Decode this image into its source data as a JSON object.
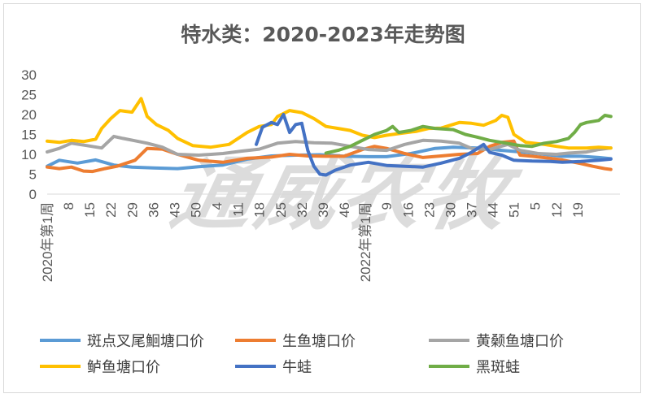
{
  "watermark": "通威农牧",
  "chart_data": {
    "type": "line",
    "title": "特水类：2020-2023年走势图",
    "ylim": [
      0,
      30
    ],
    "yticks": [
      0,
      5,
      10,
      15,
      20,
      25,
      30
    ],
    "x_tick_labels": [
      "2020年第1周",
      "8",
      "15",
      "22",
      "29",
      "36",
      "43",
      "50",
      "4",
      "11",
      "18",
      "25",
      "32",
      "39",
      "46",
      "2022年第1周",
      "9",
      "16",
      "23",
      "30",
      "37",
      "44",
      "51",
      "5",
      "12",
      "19"
    ],
    "grid": false,
    "legend_position": "bottom",
    "series": [
      {
        "name": "斑点叉尾鮰塘口价",
        "color": "#5b9bd5",
        "points": [
          [
            0,
            7
          ],
          [
            4,
            8.5
          ],
          [
            10,
            7.8
          ],
          [
            16,
            8.6
          ],
          [
            22,
            7.3
          ],
          [
            28,
            6.8
          ],
          [
            35,
            6.6
          ],
          [
            43,
            6.4
          ],
          [
            50,
            6.9
          ],
          [
            58,
            7.3
          ],
          [
            66,
            8.8
          ],
          [
            74,
            9.6
          ],
          [
            82,
            9.8
          ],
          [
            90,
            9.9
          ],
          [
            98,
            9.5
          ],
          [
            106,
            9.4
          ],
          [
            112,
            9.4
          ],
          [
            120,
            10.2
          ],
          [
            128,
            11.5
          ],
          [
            134,
            11.8
          ],
          [
            142,
            11.6
          ],
          [
            150,
            11
          ],
          [
            158,
            10.5
          ],
          [
            164,
            10
          ],
          [
            170,
            9.5
          ],
          [
            176,
            9.5
          ],
          [
            182,
            9.2
          ],
          [
            186,
            8.9
          ]
        ]
      },
      {
        "name": "生鱼塘口价",
        "color": "#ed7d31",
        "points": [
          [
            0,
            6.8
          ],
          [
            4,
            6.4
          ],
          [
            8,
            6.8
          ],
          [
            12,
            5.8
          ],
          [
            15,
            5.7
          ],
          [
            19,
            6.4
          ],
          [
            23,
            7
          ],
          [
            29,
            8.5
          ],
          [
            33,
            11.5
          ],
          [
            38,
            11.3
          ],
          [
            43,
            10
          ],
          [
            50,
            8.5
          ],
          [
            58,
            8
          ],
          [
            66,
            9
          ],
          [
            74,
            9.3
          ],
          [
            80,
            10
          ],
          [
            86,
            9.6
          ],
          [
            92,
            9.5
          ],
          [
            98,
            9.5
          ],
          [
            104,
            11.2
          ],
          [
            108,
            12
          ],
          [
            112,
            11.5
          ],
          [
            118,
            10.2
          ],
          [
            124,
            9.2
          ],
          [
            130,
            9.6
          ],
          [
            136,
            10
          ],
          [
            142,
            10.2
          ],
          [
            146,
            12
          ],
          [
            150,
            13
          ],
          [
            154,
            13.3
          ],
          [
            156,
            9.8
          ],
          [
            160,
            9.5
          ],
          [
            166,
            9
          ],
          [
            170,
            8.6
          ],
          [
            176,
            7.7
          ],
          [
            180,
            7
          ],
          [
            184,
            6.4
          ],
          [
            186,
            6.2
          ]
        ]
      },
      {
        "name": "黄颡鱼塘口价",
        "color": "#a5a5a5",
        "points": [
          [
            0,
            10.6
          ],
          [
            4,
            11.5
          ],
          [
            8,
            12.8
          ],
          [
            13,
            12.2
          ],
          [
            18,
            11.6
          ],
          [
            22,
            14.5
          ],
          [
            25,
            14
          ],
          [
            29,
            13.4
          ],
          [
            33,
            12.8
          ],
          [
            38,
            11.8
          ],
          [
            43,
            10
          ],
          [
            50,
            9.8
          ],
          [
            58,
            10.2
          ],
          [
            64,
            10.8
          ],
          [
            70,
            11.3
          ],
          [
            76,
            12.8
          ],
          [
            82,
            13.2
          ],
          [
            88,
            12.9
          ],
          [
            94,
            12.8
          ],
          [
            100,
            12
          ],
          [
            106,
            11.2
          ],
          [
            112,
            11
          ],
          [
            118,
            12.5
          ],
          [
            124,
            13.5
          ],
          [
            130,
            13.3
          ],
          [
            136,
            12.8
          ],
          [
            140,
            11.5
          ],
          [
            146,
            11.2
          ],
          [
            152,
            12.5
          ],
          [
            156,
            11
          ],
          [
            162,
            10.2
          ],
          [
            168,
            10
          ],
          [
            172,
            10.3
          ],
          [
            178,
            10.6
          ],
          [
            182,
            11.2
          ],
          [
            186,
            11.6
          ]
        ]
      },
      {
        "name": "鲈鱼塘口价",
        "color": "#ffc000",
        "points": [
          [
            0,
            13.3
          ],
          [
            4,
            13
          ],
          [
            8,
            13.5
          ],
          [
            12,
            13.2
          ],
          [
            16,
            13.8
          ],
          [
            18,
            16.5
          ],
          [
            21,
            19
          ],
          [
            24,
            21
          ],
          [
            28,
            20.6
          ],
          [
            31,
            24
          ],
          [
            33,
            19.5
          ],
          [
            36,
            17.5
          ],
          [
            40,
            16
          ],
          [
            43,
            14
          ],
          [
            48,
            12.2
          ],
          [
            54,
            11.8
          ],
          [
            60,
            12.5
          ],
          [
            66,
            15.5
          ],
          [
            70,
            17
          ],
          [
            74,
            17.5
          ],
          [
            76,
            19.5
          ],
          [
            80,
            21
          ],
          [
            84,
            20.5
          ],
          [
            88,
            19
          ],
          [
            92,
            17
          ],
          [
            96,
            16.5
          ],
          [
            100,
            16
          ],
          [
            104,
            14.8
          ],
          [
            108,
            14.2
          ],
          [
            112,
            14.8
          ],
          [
            116,
            15.2
          ],
          [
            122,
            15.8
          ],
          [
            126,
            16.5
          ],
          [
            130,
            16.6
          ],
          [
            136,
            18
          ],
          [
            140,
            17.8
          ],
          [
            144,
            17.3
          ],
          [
            148,
            18.5
          ],
          [
            150,
            19.8
          ],
          [
            152,
            19.3
          ],
          [
            154,
            15
          ],
          [
            158,
            13
          ],
          [
            164,
            12.5
          ],
          [
            168,
            12
          ],
          [
            172,
            11.6
          ],
          [
            178,
            11.6
          ],
          [
            182,
            11.8
          ],
          [
            186,
            11.6
          ]
        ]
      },
      {
        "name": "牛蛙",
        "color": "#4472c4",
        "points": [
          [
            69,
            12.5
          ],
          [
            71,
            16.8
          ],
          [
            74,
            18
          ],
          [
            76,
            17.5
          ],
          [
            78,
            20
          ],
          [
            80,
            15.5
          ],
          [
            82,
            17.5
          ],
          [
            84,
            17.8
          ],
          [
            86,
            11
          ],
          [
            88,
            7
          ],
          [
            90,
            5
          ],
          [
            92,
            4.8
          ],
          [
            95,
            6
          ],
          [
            100,
            7.3
          ],
          [
            106,
            8
          ],
          [
            112,
            7.2
          ],
          [
            118,
            7
          ],
          [
            124,
            6.8
          ],
          [
            130,
            7.8
          ],
          [
            136,
            9
          ],
          [
            140,
            10.5
          ],
          [
            144,
            12.5
          ],
          [
            146,
            10.5
          ],
          [
            150,
            9.8
          ],
          [
            154,
            8.5
          ],
          [
            160,
            8.3
          ],
          [
            166,
            8.2
          ],
          [
            170,
            8
          ],
          [
            176,
            8.2
          ],
          [
            182,
            8.5
          ],
          [
            186,
            8.8
          ]
        ]
      },
      {
        "name": "黑斑蛙",
        "color": "#70ad47",
        "points": [
          [
            92,
            10.3
          ],
          [
            96,
            11
          ],
          [
            100,
            12
          ],
          [
            104,
            13.5
          ],
          [
            108,
            15
          ],
          [
            112,
            16
          ],
          [
            114,
            17
          ],
          [
            116,
            15.5
          ],
          [
            120,
            16
          ],
          [
            124,
            17
          ],
          [
            128,
            16.5
          ],
          [
            134,
            16.2
          ],
          [
            138,
            15
          ],
          [
            142,
            14.3
          ],
          [
            146,
            13.5
          ],
          [
            150,
            13
          ],
          [
            156,
            12.2
          ],
          [
            160,
            12
          ],
          [
            164,
            12.8
          ],
          [
            168,
            13.2
          ],
          [
            172,
            14
          ],
          [
            174,
            15.5
          ],
          [
            176,
            17.5
          ],
          [
            178,
            18
          ],
          [
            182,
            18.5
          ],
          [
            184,
            19.8
          ],
          [
            186,
            19.5
          ]
        ]
      }
    ]
  }
}
